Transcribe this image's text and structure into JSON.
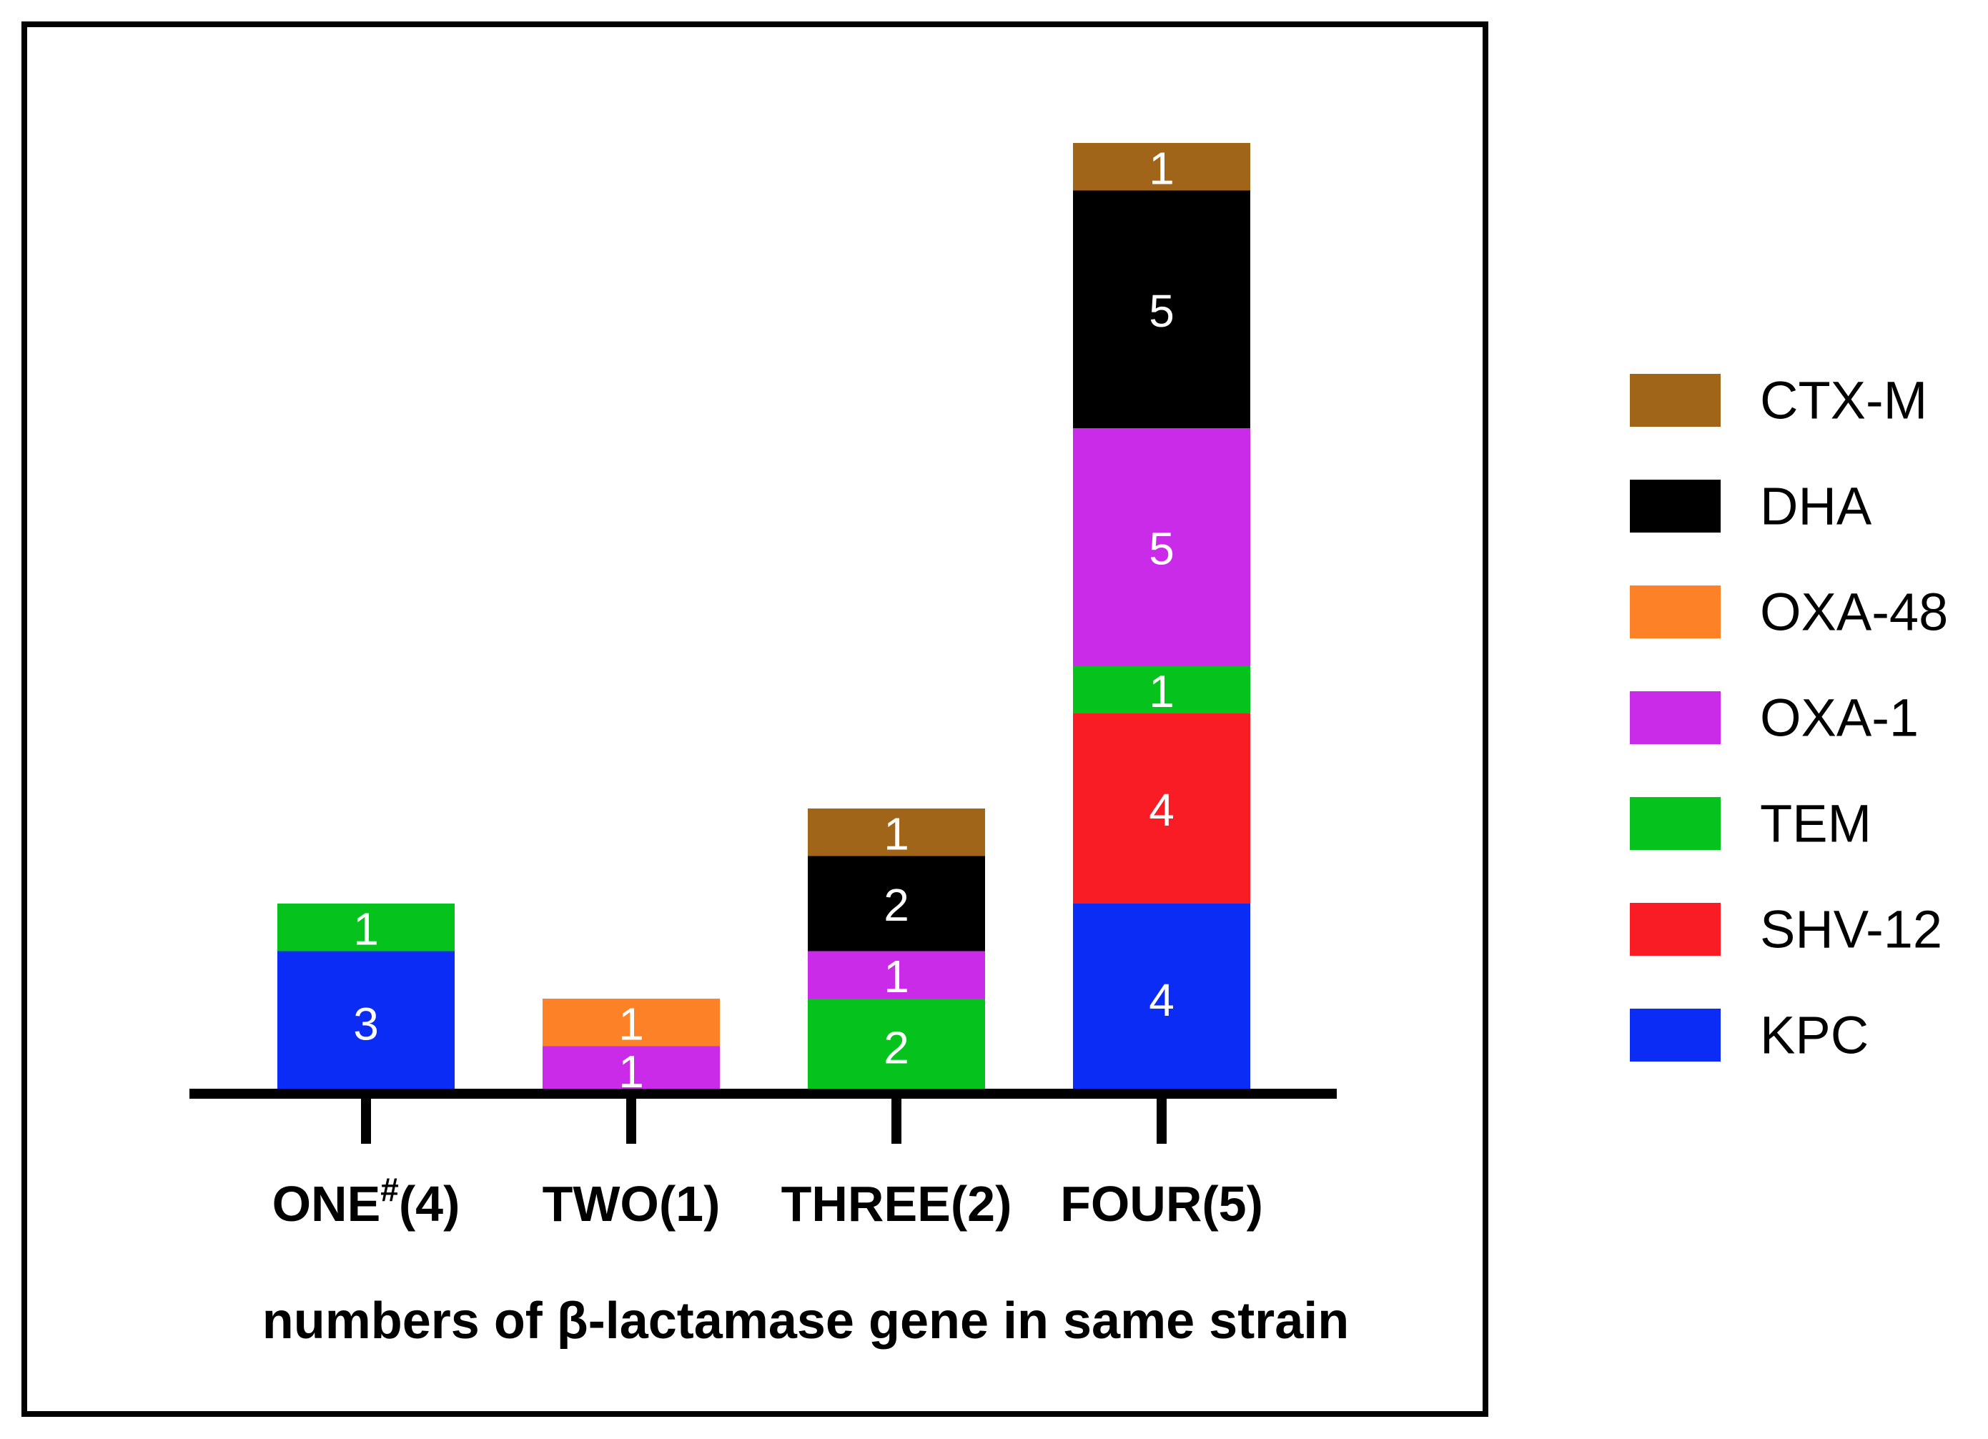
{
  "chart_data": {
    "type": "bar",
    "stacked": true,
    "title": "",
    "xlabel": "numbers of β-lactamase gene in same strain",
    "ylabel": "",
    "ylim": [
      0,
      20
    ],
    "grid": false,
    "legend_position": "right",
    "categories": [
      {
        "main": "ONE",
        "sup": "#",
        "suffix": "(4)"
      },
      {
        "main": "TWO",
        "sup": "",
        "suffix": "(1)"
      },
      {
        "main": "THREE",
        "sup": "",
        "suffix": "(2)"
      },
      {
        "main": "FOUR",
        "sup": "",
        "suffix": "(5)"
      }
    ],
    "series": [
      {
        "name": "KPC",
        "color": "#0a2cf5",
        "values": [
          3,
          0,
          0,
          4
        ]
      },
      {
        "name": "SHV-12",
        "color": "#fa1c24",
        "values": [
          0,
          0,
          0,
          4
        ]
      },
      {
        "name": "TEM",
        "color": "#05c21c",
        "values": [
          1,
          0,
          2,
          1
        ]
      },
      {
        "name": "OXA-1",
        "color": "#c92be8",
        "values": [
          0,
          1,
          1,
          5
        ]
      },
      {
        "name": "OXA-48",
        "color": "#fd8126",
        "values": [
          0,
          1,
          0,
          0
        ]
      },
      {
        "name": "DHA",
        "color": "#000000",
        "values": [
          0,
          0,
          2,
          5
        ]
      },
      {
        "name": "CTX-M",
        "color": "#a1651a",
        "values": [
          0,
          0,
          1,
          1
        ]
      }
    ],
    "legend_order": [
      "CTX-M",
      "DHA",
      "OXA-48",
      "OXA-1",
      "TEM",
      "SHV-12",
      "KPC"
    ]
  }
}
